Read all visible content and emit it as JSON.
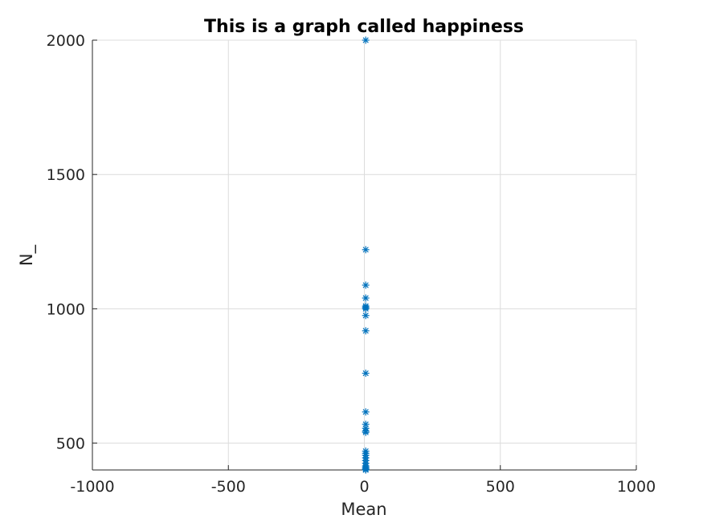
{
  "chart_data": {
    "type": "scatter",
    "title": "This is a graph called happiness",
    "xlabel": "Mean",
    "ylabel": "N_",
    "xlim": [
      -1000,
      1000
    ],
    "ylim": [
      400,
      2000
    ],
    "xticks": [
      -1000,
      -500,
      0,
      500,
      1000
    ],
    "xtick_labels": [
      "-1000",
      "-500",
      "0",
      "500",
      "1000"
    ],
    "yticks": [
      500,
      1000,
      1500,
      2000
    ],
    "ytick_labels": [
      "500",
      "1000",
      "1500",
      "2000"
    ],
    "grid": true,
    "marker": "asterisk",
    "color": "#0072bd",
    "series": [
      {
        "x": [
          5,
          5,
          5,
          5,
          5,
          5,
          5,
          5,
          5,
          5,
          5,
          5,
          5,
          5,
          5,
          5,
          5,
          5,
          5,
          5,
          5,
          5,
          5,
          5,
          5,
          5
        ],
        "y": [
          2000,
          1220,
          1088,
          1040,
          1010,
          1005,
          1000,
          975,
          918,
          760,
          616,
          570,
          555,
          545,
          540,
          470,
          462,
          455,
          445,
          435,
          425,
          415,
          410,
          405,
          402,
          400
        ]
      }
    ]
  }
}
